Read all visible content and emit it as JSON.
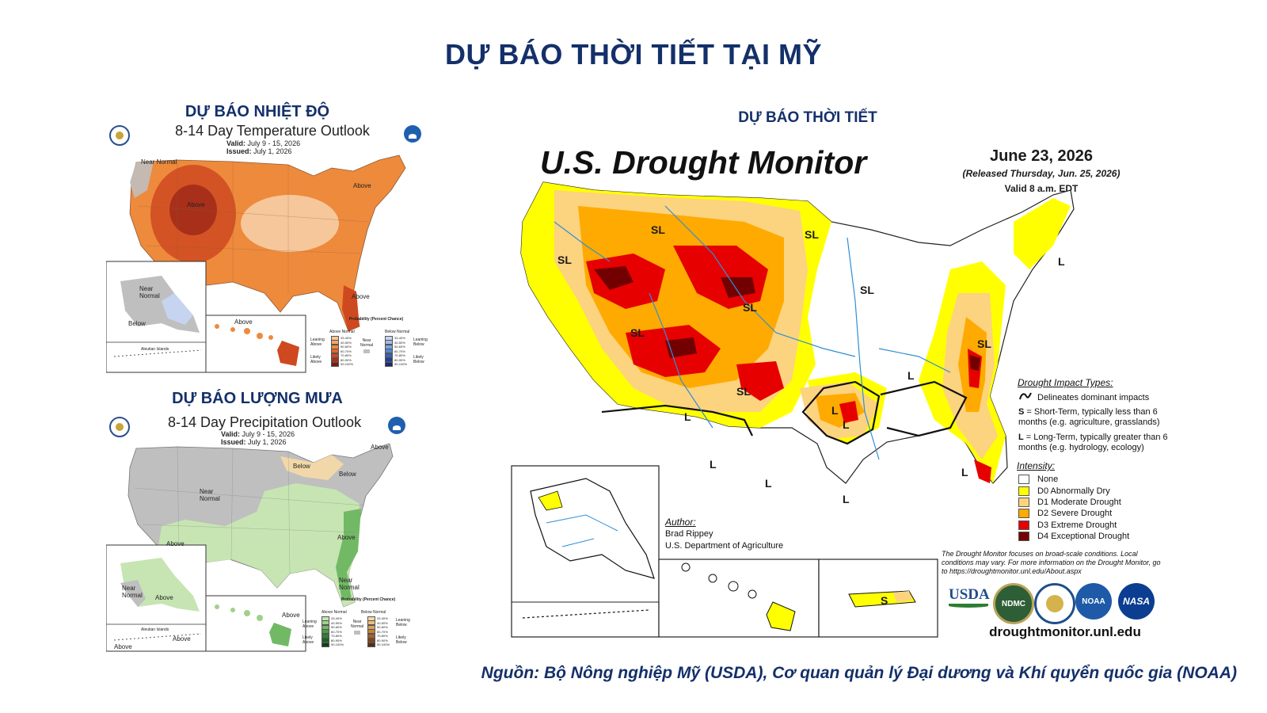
{
  "page_title": "DỰ BÁO THỜI TIẾT TẠI MỸ",
  "temperature": {
    "section_title": "DỰ BÁO NHIỆT ĐỘ",
    "panel_title": "8-14 Day Temperature Outlook",
    "valid_label": "Valid:",
    "valid_value": "July 9 - 15, 2026",
    "issued_label": "Issued:",
    "issued_value": "July 1, 2026",
    "labels": {
      "near_normal": "Near Normal",
      "above": "Above",
      "below": "Below",
      "aleutian": "Aleutian Islands"
    },
    "legend": {
      "title": "Probability (Percent Chance)",
      "above_normal": "Above Normal",
      "below_normal": "Below Normal",
      "near_normal": "Near Normal",
      "leaning_above": "Leaning Above",
      "likely_above": "Likely Above",
      "leaning_below": "Leaning Below",
      "likely_below": "Likely Below",
      "ranges": [
        "33-40%",
        "40-50%",
        "50-60%",
        "60-70%",
        "70-80%",
        "80-90%",
        "90-100%"
      ],
      "above_colors": [
        "#f6c79b",
        "#f3a766",
        "#ee8a3c",
        "#e4652a",
        "#cf4920",
        "#a8301b",
        "#7a1a14"
      ],
      "below_colors": [
        "#c6d4ef",
        "#a2bce6",
        "#7da3dc",
        "#5686ce",
        "#3464b8",
        "#233f96",
        "#1a2a6b"
      ]
    }
  },
  "precipitation": {
    "section_title": "DỰ BÁO LƯỢNG MƯA",
    "panel_title": "8-14 Day Precipitation Outlook",
    "valid_label": "Valid:",
    "valid_value": "July 9 - 15, 2026",
    "issued_label": "Issued:",
    "issued_value": "July 1, 2026",
    "labels": {
      "near_normal": "Near Normal",
      "above": "Above",
      "below": "Below",
      "aleutian": "Aleutian Islands"
    },
    "legend": {
      "title": "Probability (Percent Chance)",
      "above_normal": "Above Normal",
      "below_normal": "Below Normal",
      "near_normal": "Near Normal",
      "leaning_above": "Leaning Above",
      "likely_above": "Likely Above",
      "leaning_below": "Leaning Below",
      "likely_below": "Likely Below",
      "ranges": [
        "33-40%",
        "40-50%",
        "50-60%",
        "60-70%",
        "70-80%",
        "80-90%",
        "90-100%"
      ],
      "above_colors": [
        "#c6e5b3",
        "#9fd18b",
        "#72b966",
        "#4b9d45",
        "#2e8032",
        "#1b6122",
        "#0d4214"
      ],
      "below_colors": [
        "#f2d8a8",
        "#e9c07b",
        "#d9a25a",
        "#c4823d",
        "#a4632a",
        "#80461d",
        "#5b2e12"
      ]
    }
  },
  "drought": {
    "section_title": "DỰ BÁO THỜI TIẾT",
    "map_title": "U.S. Drought Monitor",
    "date": "June 23, 2026",
    "released": "(Released Thursday, Jun. 25, 2026)",
    "valid": "Valid 8 a.m. EDT",
    "impact_title": "Drought Impact Types:",
    "impact_delineates": "Delineates dominant impacts",
    "impact_s": "= Short-Term, typically less than 6 months (e.g. agriculture, grasslands)",
    "impact_l": "= Long-Term, typically greater than 6 months (e.g. hydrology, ecology)",
    "intensity_title": "Intensity:",
    "intensity": [
      {
        "label": "None",
        "color": "#ffffff"
      },
      {
        "label": "D0 Abnormally Dry",
        "color": "#ffff00"
      },
      {
        "label": "D1 Moderate Drought",
        "color": "#fcd37f"
      },
      {
        "label": "D2 Severe Drought",
        "color": "#ffaa00"
      },
      {
        "label": "D3 Extreme Drought",
        "color": "#e60000"
      },
      {
        "label": "D4 Exceptional Drought",
        "color": "#730000"
      }
    ],
    "author_label": "Author:",
    "author_name": "Brad Rippey",
    "author_org": "U.S. Department of Agriculture",
    "note": "The Drought Monitor focuses on broad-scale conditions. Local conditions may vary. For more information on the Drought Monitor, go to https://droughtmonitor.unl.edu/About.aspx",
    "website": "droughtmonitor.unl.edu",
    "map_labels": {
      "sl": "SL",
      "l": "L",
      "s": "S"
    },
    "logos": {
      "usda": "USDA",
      "ndmc": "NDMC",
      "noaa": "NOAA",
      "nasa": "NASA"
    }
  },
  "source": "Nguồn: Bộ Nông nghiệp Mỹ (USDA), Cơ quan quản lý Đại dương và Khí quyển quốc gia (NOAA)"
}
